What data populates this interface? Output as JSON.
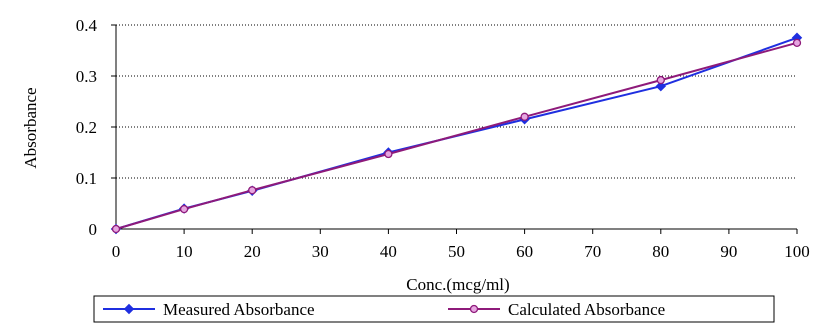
{
  "chart_data": {
    "type": "line",
    "title": "",
    "xlabel": "Conc.(mcg/ml)",
    "ylabel": "Absorbance",
    "xlim": [
      0,
      100
    ],
    "ylim": [
      0,
      0.4
    ],
    "x_ticks": [
      "0",
      "10",
      "20",
      "30",
      "40",
      "50",
      "60",
      "70",
      "80",
      "90",
      "100"
    ],
    "y_ticks": [
      "0",
      "0.1",
      "0.2",
      "0.3",
      "0.4"
    ],
    "grid": true,
    "legend_position": "bottom",
    "series": [
      {
        "name": "Measured Absorbance",
        "color": "#1f2fe0",
        "marker": "diamond",
        "x": [
          0,
          10,
          20,
          40,
          60,
          80,
          100
        ],
        "y": [
          0,
          0.04,
          0.075,
          0.15,
          0.215,
          0.28,
          0.375
        ]
      },
      {
        "name": "Calculated Absorbance",
        "color": "#8e1a7a",
        "marker": "circle",
        "x": [
          0,
          10,
          20,
          40,
          60,
          80,
          100
        ],
        "y": [
          0,
          0.039,
          0.076,
          0.147,
          0.22,
          0.292,
          0.365
        ]
      }
    ]
  }
}
